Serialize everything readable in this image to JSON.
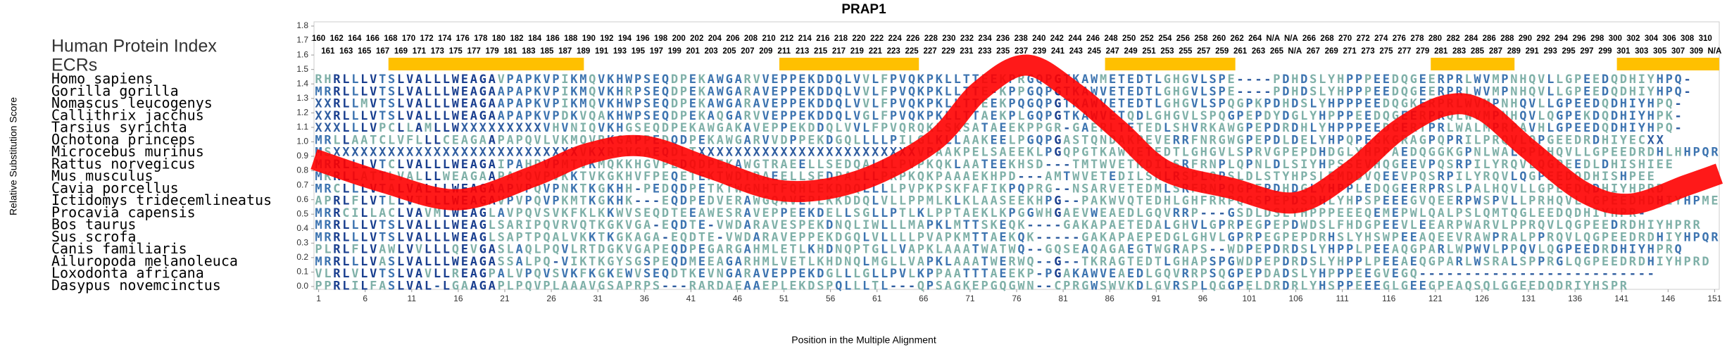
{
  "chart_data": {
    "type": "line",
    "title": "PRAP1",
    "x_label": "Position in the Multiple Alignment",
    "y_label": "Relative Substitution Score",
    "index_label": "Human Protein Index",
    "ecr_label": "ECRs",
    "xlim": [
      0.5,
      151.5
    ],
    "ylim": [
      0,
      1.8
    ],
    "xticks": [
      1,
      6,
      11,
      16,
      21,
      26,
      31,
      36,
      41,
      46,
      51,
      56,
      61,
      66,
      71,
      76,
      81,
      86,
      91,
      96,
      101,
      106,
      111,
      116,
      121,
      126,
      131,
      136,
      141,
      146,
      151
    ],
    "yticks": [
      {
        "value": 0,
        "label": "0.0"
      },
      0.1,
      0.2,
      0.3,
      0.4,
      0.5,
      0.6,
      0.7,
      0.8,
      0.9,
      {
        "value": 1,
        "label": "1.0"
      },
      1.1,
      1.2,
      1.3,
      1.4,
      1.5,
      1.6,
      1.7,
      1.8
    ],
    "series": [
      {
        "color": "#ff0000",
        "x": [
          0.5,
          8,
          16,
          24,
          30,
          36,
          43,
          51,
          59,
          67,
          72,
          77,
          82,
          87,
          92,
          99,
          106,
          112,
          117,
          122,
          126,
          131,
          137,
          142,
          148,
          151.5
        ],
        "values": [
          0.88,
          0.72,
          0.6,
          0.76,
          0.92,
          0.97,
          0.82,
          0.66,
          0.73,
          1.0,
          1.35,
          1.53,
          1.35,
          1.08,
          0.8,
          0.68,
          0.58,
          0.8,
          1.08,
          1.25,
          1.22,
          0.95,
          0.65,
          0.57,
          0.7,
          0.78
        ]
      }
    ],
    "ecr_color": "#ffc000",
    "ecr_spans": [
      [
        9,
        29
      ],
      [
        51,
        65
      ],
      [
        86,
        99
      ],
      [
        121,
        129
      ],
      [
        141,
        151
      ]
    ],
    "position_labels_top": [
      160,
      162,
      164,
      166,
      168,
      170,
      172,
      174,
      176,
      178,
      180,
      182,
      184,
      186,
      188,
      190,
      192,
      194,
      196,
      198,
      200,
      202,
      204,
      206,
      208,
      210,
      212,
      214,
      216,
      218,
      220,
      222,
      224,
      226,
      228,
      230,
      232,
      234,
      236,
      238,
      240,
      242,
      244,
      246,
      248,
      250,
      252,
      254,
      256,
      258,
      260,
      262,
      264,
      "N/A",
      "N/A",
      266,
      268,
      270,
      272,
      274,
      276,
      278,
      280,
      282,
      284,
      286,
      288,
      290,
      292,
      294,
      296,
      298,
      300,
      302,
      304,
      306,
      308,
      310
    ],
    "position_labels_bottom": [
      161,
      163,
      165,
      167,
      169,
      171,
      173,
      175,
      177,
      179,
      181,
      183,
      185,
      187,
      189,
      191,
      193,
      195,
      197,
      199,
      201,
      203,
      205,
      207,
      209,
      211,
      213,
      215,
      217,
      219,
      221,
      223,
      225,
      227,
      229,
      231,
      233,
      235,
      237,
      239,
      241,
      243,
      245,
      247,
      249,
      251,
      253,
      255,
      257,
      259,
      261,
      263,
      265,
      "N/A",
      267,
      269,
      271,
      273,
      275,
      277,
      279,
      281,
      283,
      285,
      287,
      289,
      291,
      293,
      295,
      297,
      299,
      301,
      303,
      305,
      307,
      309,
      "N/A"
    ],
    "species": [
      {
        "name": "Homo sapiens",
        "sequence": "RHRLLLVTSLVALLLWEAGAVPAPKVPIKMQVKHWPSEQDPEKAWGARVVEPPEKDDQLVVLFPVQKPKLLTTEEKPRGQPGTKAWMETEDTLGHGVLSPE----PDHDSLYHPPPEEDQGEERPRLWVMPNHQVLLGPEEDQDHIYHPQ-"
      },
      {
        "name": "Gorilla gorilla",
        "sequence": "MRRLLLVTSLVALLLWEAGAAPAPKVPIKMQVKHRPSEQDPEKAWGARAVEPPEKDDQLVVLFPVQKPKLLTTE-KPPGQPGTKAWVETEDTLGHGVLSPE----PDHDSLYHPPPEEDQGEERPRLWVMPNHQVLLGPEEDQDHIYHPQ-"
      },
      {
        "name": "Nomascus leucogenys",
        "sequence": "XXRLLMVTSLVALLLWEAGAAPAPKVPIKMQVKHWPSEQDPEKAWGARAVEPPEKDDQLVVLFPVQKPKLLTTEEKPQGQPGTKAWVETEDTLGHGVLSPQGPKPDHDSLYHPPPEEDQGKERPRLWVMPNHQVLLGPEEDQDHIYHPQ-"
      },
      {
        "name": "Callithrix jacchus",
        "sequence": "XXRLLLVTSLVALLLWEAGAAPAPKVPDKVQAKHWPSEQDPEKAQGARVVEPPEKDDQLVGLFPVQKPKLLTTAEKPLGQPGTKAWVETQDLGHGVLSPQGPEPDYDGLYHPPPEEDQGEERPRQLWVMPNHQVLQGPEKDQDHIYHPK-"
      },
      {
        "name": "Tarsius syrichta",
        "sequence": "XXXLLLVPCLLAMLLWXXXXXXXXXVHVNIQVKHGSEQDPEKAWGAKAVEPPEKDDQLVVLFPVQRQKLSKSATAEEKPPGR-GAERLTETEDLSHVRKAWGPEPDRDHLYHPPPEEDGERTPRLWALMPRPAVHLGPEEDQDHIYHPQ-"
      },
      {
        "name": "Ochotona princeps",
        "sequence": "MRLLAATCLVFLLLCEAGAAPAPQVLVKMQVRKGAPPEDQDPEKAWGARVVDPPEKDGQLLLLPILGLKLLAAKEELPGQPGASTQNDAKPEVERRFNRGWGPEPDLDELYHPQPEGKGRAGPQPRILPRQVLQPGEEDRDHIYECXX"
      },
      {
        "name": "Microcebus murinus",
        "sequence": "MSXXXXXXXXXXXXXXXXXXXXXXXXXXXVKXRPVGAEQDLTXXXXXXXXXXXXXXXXXXXXXXXXVPAAKPELSAEEKLPGQPGTKAWVETEDTLGHGVLSPRVGPEPDHDGLYHPPAEDQGGKGPNLWALPPDHQVLLGPEEDRDHLHHPQR"
      },
      {
        "name": "Rattus norvegicus",
        "sequence": "MRRLLLVTCLVALLLWEAGAIPAHPVPMTVKMQKKHGVPEDQDPEKAWGTRAEELLSEDQALLLPVPKQKLAATEEKHSD---TMTWVETKDILSRFRNPLQPNLDLSIYHPSSEVHQGEEVPQSRPILYRQVLQGPEEDLDHISHIEE"
      },
      {
        "name": "Mus musculus",
        "sequence": "MKRLLATTLVALLLWEAGAAPAPQVPVKKTVKGKHVFPEQETEKTWDTRAEELLSEDPALLLPRPKQKPAAAEKHPD---AMTWVETEDILSHLRSPLQPSLDLSTYHPSLEMDDVQEEVPQSRPILYRQVLQGPEEDQDHISHPEE"
      },
      {
        "name": "Cavia porcellus",
        "sequence": "MRCLLLVTALVALLLWEAGAAPVPQVPNKTKGKHH-PEDQDPETKTWGNHTFQHLEKDDQLLLLPVPKPSKFAFIKPQPRG--NSARVETEDMLSRFRNPQGPEPDHDGLYHPPLEDQGEERPRSLPALHQVLLGPEEDQDHIYHPRD"
      },
      {
        "name": "Ictidomys tridecemlineatus",
        "sequence": "APRLFLVTLLVTLLLWEAGAVPVPQVPKMTKGKHK---EQDPEDVERAWGQAVEPLKKDDQLVLLPPMLKLKLAASEEKHPG--PAKWVQTEDHLGHFRRPQGSPEPDSDHLYHPSPEEEGVQEERPWSPVLLPRHQVLLGPEEDHDHIYHPME"
      },
      {
        "name": "Procavia capensis",
        "sequence": "MRRCILLACLVAVMLWEAGLAVPQVSVKFKLKKWVSEQDTEEAWESRAVEPPEEKDELLSGLLPTLKLPPTAEKLKPGGWHGAEVWEAEDLGQVRRP---GSDLDSLYHPPPEEEQEMEPWLQALPSLQMTQGLEEDQDHIYHPR-"
      },
      {
        "name": "Bos taurus",
        "sequence": "MRRLLLVTSLVALLLWEAGLSARIPQVRVQTKGKVGA-EQDTE-VWDARAVESPEKDNQLIWLLLMAPKLMTTSKEQK----GAKAPAETEDALGHVLGPRPEGPEPDWDSLFHDGPEEVLEEARPWARVLPPRQVLQGPEEDRDHIYHPRR"
      },
      {
        "name": "Sus scrofa",
        "sequence": "MRRLLLVTSLVALLLWEAGLSAPTPQALVKKTKGKAGA-EQDTE-VWDARAVEPPEKDGQLVLLLLPVAPKMTTAEKQK-----GAKAPAEPEDGLGHVLGPRPEGPEPDRHSLYHSWPEEAQEEVRAWPRALPPRQVLQGPEEDRDHIYHPQR"
      },
      {
        "name": "Canis familiaris",
        "sequence": "PLRLFLVAWLVVLLLQEVGASLAQLPQVLRTDGKVGAPEQDPEGARGAHMLETLKHDNQPTGLLVAPKLAAATWATWQ--GQSEAQAGAEGTWGRAPS--WDPEPDRDSLYHPPLPEEAQGPARLWPWVLPPQVLQGPEEDRDHIYHPRQ"
      },
      {
        "name": "Ailuropoda melanoleuca",
        "sequence": "MRRLLLVASLVALLLWEAGASSALPQ-VIKTKGYSGSPEQDMEEAGARHMLVETLKHDNQLMGLLVAPKLAAATWERWQ--G--TKRAGTEDTLGHAPSPGWDPEPDRDSLYHPPLPEEAEQGPARLWSRALSPPRGLQGPEEDRDHIYHPRD"
      },
      {
        "name": "Loxodonta africana",
        "sequence": "VLRLVLVTSLVAVLLREAGPALVPQVSVKFKGKEWVSEQDTKEVNGARAVEPPEKDGLLLGLLPVLKPPAATTTAEEKP-PGAKAWVEAEDLGQVRRPSQGPEPDADSLYHPPPEEGVEGQ--------------------------"
      },
      {
        "name": "Dasypus novemcinctus",
        "sequence": "PPRLILFASLVAL-LGAAGAPLPQVPLAAAVGSAPRPS---RARDAEAAEPLEKDSPQLLLTL---QPSAGKEPGQGWN--CPRGWSWVKDLGVRSPLQGGPELDRDRLYHSPPEEEGLGEEGPEAQSQLGGEEDQDRIYHSPR"
      }
    ]
  }
}
